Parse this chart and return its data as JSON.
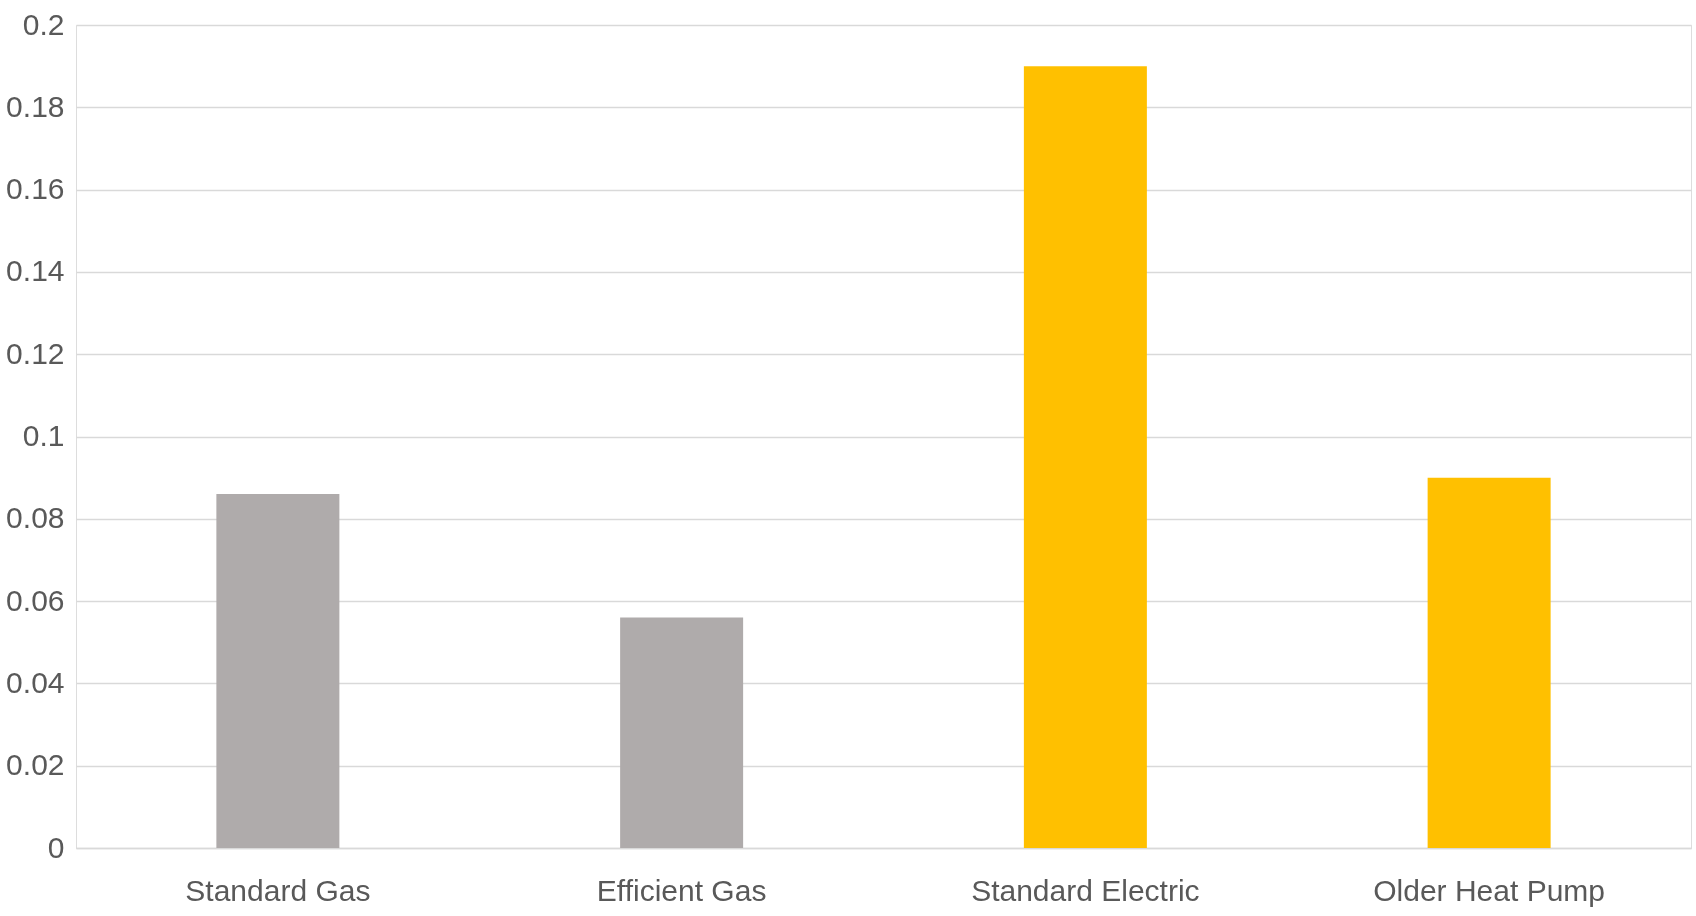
{
  "chart_data": {
    "type": "bar",
    "categories": [
      "Standard Gas",
      "Efficient Gas",
      "Standard Electric",
      "Older Heat Pump"
    ],
    "values": [
      0.086,
      0.056,
      0.19,
      0.09
    ],
    "colors": [
      "#afabab",
      "#afabab",
      "#ffc000",
      "#ffc000"
    ],
    "ylim": [
      0,
      0.2
    ],
    "yticks": [
      0,
      0.02,
      0.04,
      0.06,
      0.08,
      0.1,
      0.12,
      0.14,
      0.16,
      0.18,
      0.2
    ],
    "grid": "y",
    "legend": false
  }
}
